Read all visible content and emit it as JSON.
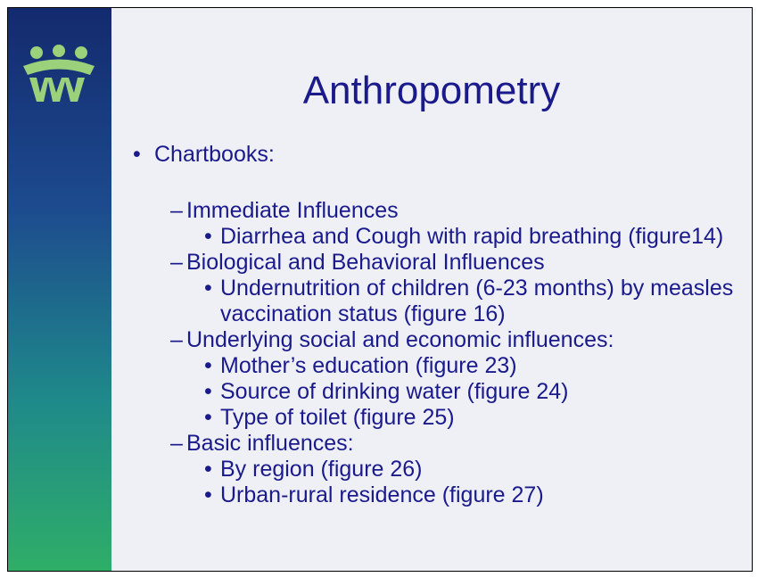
{
  "slide": {
    "title": "Anthropometry",
    "bullet": "Chartbooks:",
    "groups": [
      {
        "heading": "Immediate Influences",
        "items": [
          "Diarrhea and Cough with rapid breathing (figure14)"
        ]
      },
      {
        "heading": "Biological and Behavioral Influences",
        "items": [
          "Undernutrition of children (6-23 months) by measles vaccination status (figure 16)"
        ]
      },
      {
        "heading": "Underlying social and economic influences:",
        "items": [
          "Mother’s education (figure 23)",
          "Source of drinking water (figure 24)",
          "Type of toilet (figure 25)"
        ]
      },
      {
        "heading": "Basic influences:",
        "items": [
          "By region (figure 26)",
          "Urban-rural residence (figure 27)"
        ]
      }
    ]
  }
}
